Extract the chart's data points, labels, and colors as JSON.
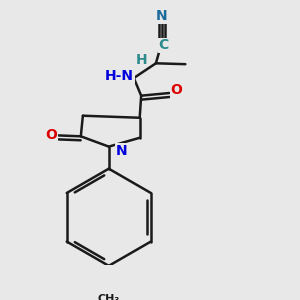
{
  "bg_color": "#e8e8e8",
  "bond_color": "#1a1a1a",
  "col_N": "#1010cc",
  "col_O": "#dd0000",
  "col_CN": "#2e8b8b",
  "col_HN": "#0000dd",
  "bond_lw": 1.8,
  "figsize": [
    3.0,
    3.0
  ],
  "dpi": 100,
  "xlim": [
    0,
    300
  ],
  "ylim": [
    0,
    300
  ]
}
